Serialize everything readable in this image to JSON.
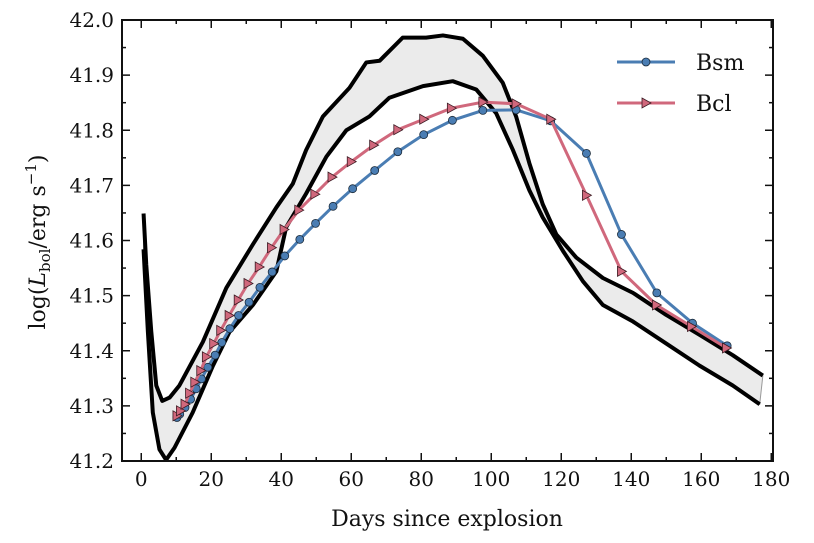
{
  "chart_data": {
    "type": "line",
    "title": "",
    "xlabel": "Days since explosion",
    "ylabel": {
      "prefix": "log(",
      "var": "L",
      "sub": "bol",
      "mid": "/erg s",
      "sup": "−1",
      "suffix": ")"
    },
    "xlim": [
      -5.5,
      180.5
    ],
    "ylim": [
      41.2,
      42.0
    ],
    "xticks": [
      "0",
      "20",
      "40",
      "60",
      "80",
      "100",
      "120",
      "140",
      "160",
      "180"
    ],
    "yticks": [
      "41.2",
      "41.3",
      "41.4",
      "41.5",
      "41.6",
      "41.7",
      "41.8",
      "41.9",
      "42.0"
    ],
    "grid": false,
    "legend_position": "top-right",
    "series": [
      {
        "name": "Bsm",
        "color": "#4a7db3",
        "marker": "circle",
        "x": [
          10.2,
          11,
          12.5,
          14.1,
          15.7,
          17.2,
          19.0,
          21.1,
          23,
          25.3,
          27.8,
          30.8,
          33.9,
          37.4,
          41.0,
          45.3,
          49.8,
          54.8,
          60.4,
          66.7,
          73.3,
          80.7,
          88.9,
          97.6,
          107.1,
          117,
          127.2,
          137.2,
          147.3,
          157.5,
          167.4
        ],
        "y": [
          41.279,
          41.285,
          41.297,
          41.312,
          41.331,
          41.349,
          41.37,
          41.392,
          41.415,
          41.44,
          41.464,
          41.488,
          41.515,
          41.543,
          41.572,
          41.602,
          41.631,
          41.662,
          41.694,
          41.727,
          41.761,
          41.792,
          41.818,
          41.836,
          41.837,
          41.817,
          41.758,
          41.611,
          41.505,
          41.45,
          41.409
        ]
      },
      {
        "name": "Bcl",
        "color": "#d0687c",
        "marker": "triangle-right",
        "x": [
          10.2,
          11.2,
          12.5,
          13.8,
          15.3,
          17.0,
          18.6,
          20.7,
          22.7,
          25.1,
          27.7,
          30.5,
          33.7,
          37.2,
          40.8,
          45.0,
          49.6,
          54.5,
          60,
          66.4,
          73.3,
          80.7,
          88.6,
          97.6,
          107.1,
          117,
          127.2,
          137.2,
          147.2,
          157.2,
          167.2
        ],
        "y": [
          41.282,
          41.291,
          41.303,
          41.323,
          41.343,
          41.364,
          41.389,
          41.413,
          41.437,
          41.464,
          41.492,
          41.522,
          41.552,
          41.587,
          41.62,
          41.655,
          41.684,
          41.715,
          41.743,
          41.773,
          41.801,
          41.82,
          41.84,
          41.851,
          41.848,
          41.82,
          41.682,
          41.544,
          41.483,
          41.444,
          41.405
        ]
      }
    ],
    "envelope": {
      "fill": "#ebebeb",
      "upper": {
        "x": [
          0.66,
          1.43,
          2.86,
          4.29,
          6.0,
          8.1,
          10.9,
          17.6,
          24.3,
          31.9,
          38.6,
          43.3,
          47.1,
          51.9,
          59.5,
          64.3,
          68.1,
          74.7,
          81.4,
          86.2,
          91.9,
          97.6,
          103.3,
          107.1,
          110.9,
          114.7,
          118.6,
          124.3,
          131.9,
          140.5,
          150,
          159.5,
          169,
          177.6
        ],
        "y": [
          41.649,
          41.556,
          41.435,
          41.337,
          41.309,
          41.315,
          41.337,
          41.416,
          41.514,
          41.593,
          41.66,
          41.703,
          41.764,
          41.825,
          41.877,
          41.923,
          41.926,
          41.968,
          41.968,
          41.972,
          41.966,
          41.935,
          41.886,
          41.825,
          41.74,
          41.666,
          41.611,
          41.569,
          41.532,
          41.505,
          41.465,
          41.429,
          41.392,
          41.355
        ]
      },
      "lower": {
        "x": [
          0.66,
          1.9,
          3.3,
          5.2,
          7.1,
          9.5,
          14.7,
          20.5,
          25.2,
          31.9,
          38.6,
          41.4,
          47.1,
          52.9,
          58.6,
          65.2,
          70.9,
          80.5,
          89.0,
          95.7,
          101.4,
          106.2,
          110.9,
          114.7,
          120.5,
          126.2,
          131.9,
          140.5,
          150,
          159.5,
          169,
          176.7
        ],
        "y": [
          41.584,
          41.434,
          41.288,
          41.221,
          41.202,
          41.224,
          41.288,
          41.373,
          41.434,
          41.483,
          41.544,
          41.624,
          41.685,
          41.752,
          41.8,
          41.825,
          41.859,
          41.88,
          41.889,
          41.874,
          41.831,
          41.764,
          41.691,
          41.642,
          41.581,
          41.526,
          41.483,
          41.453,
          41.413,
          41.373,
          41.337,
          41.303
        ]
      }
    }
  }
}
